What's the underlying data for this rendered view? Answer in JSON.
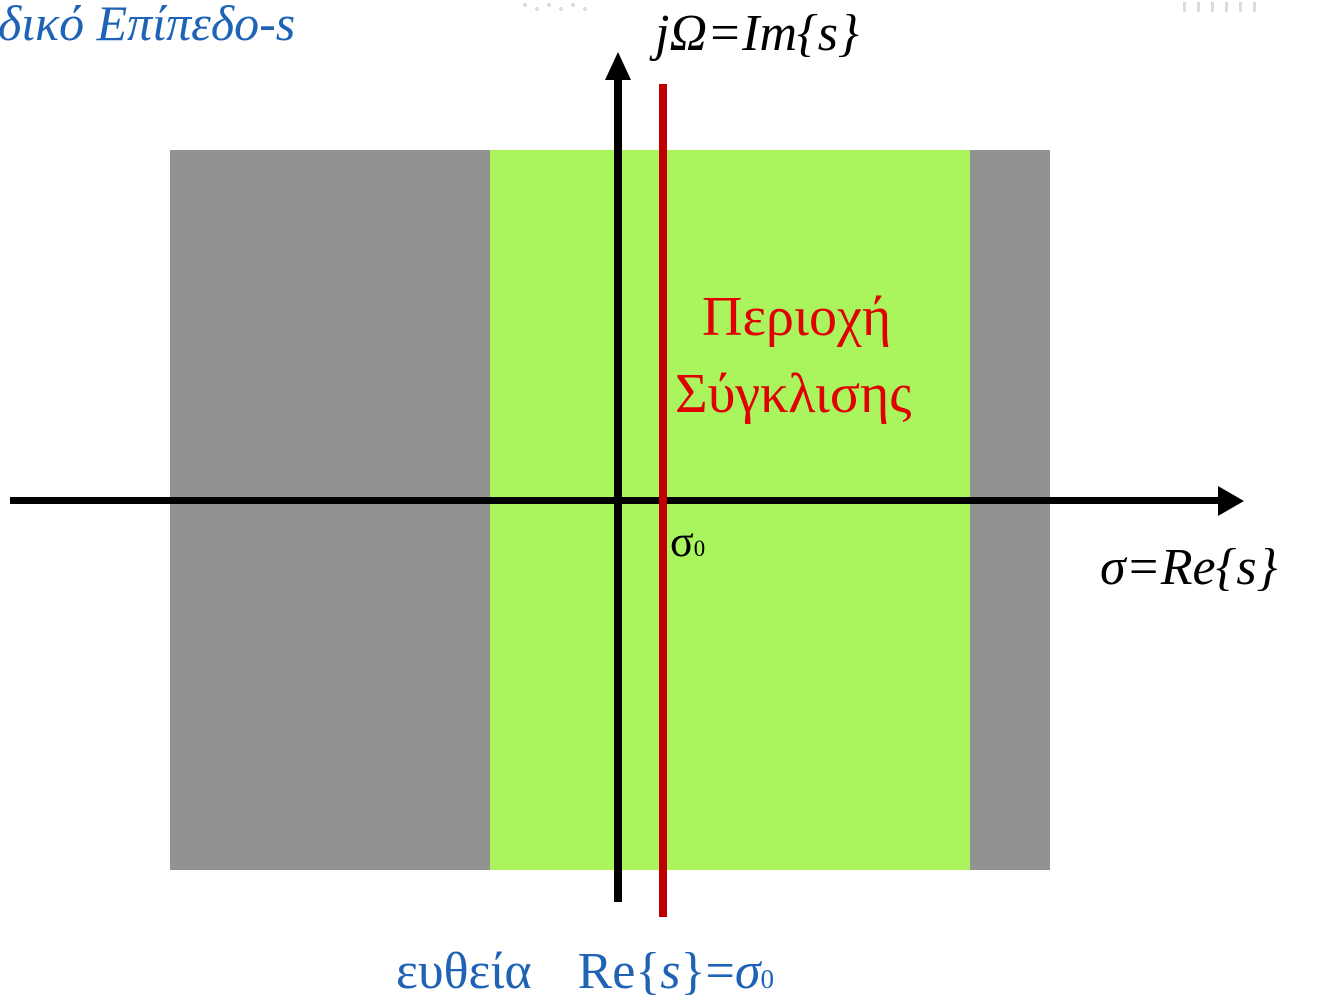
{
  "title": "δικό Επίπεδο-s",
  "imag_axis": {
    "label": "jΩ=Im{s}"
  },
  "real_axis": {
    "label": "σ=Re{s}"
  },
  "roc": {
    "label_line1": "Περιοχή",
    "label_line2": "Σύγκλισης"
  },
  "sigma0": {
    "symbol": "σ",
    "subscript": "0"
  },
  "line_caption": {
    "word": "ευθεία",
    "re_open": "Re{",
    "variable": "s",
    "re_close": "}=",
    "sigma": "σ",
    "subscript": "0"
  },
  "colors": {
    "roc_fill": "#aaf55e",
    "outside_fill": "#929292",
    "sigma0_line": "#c00000",
    "roc_text": "#e00000",
    "title_blue": "#1f63b7",
    "axis": "#000000"
  }
}
